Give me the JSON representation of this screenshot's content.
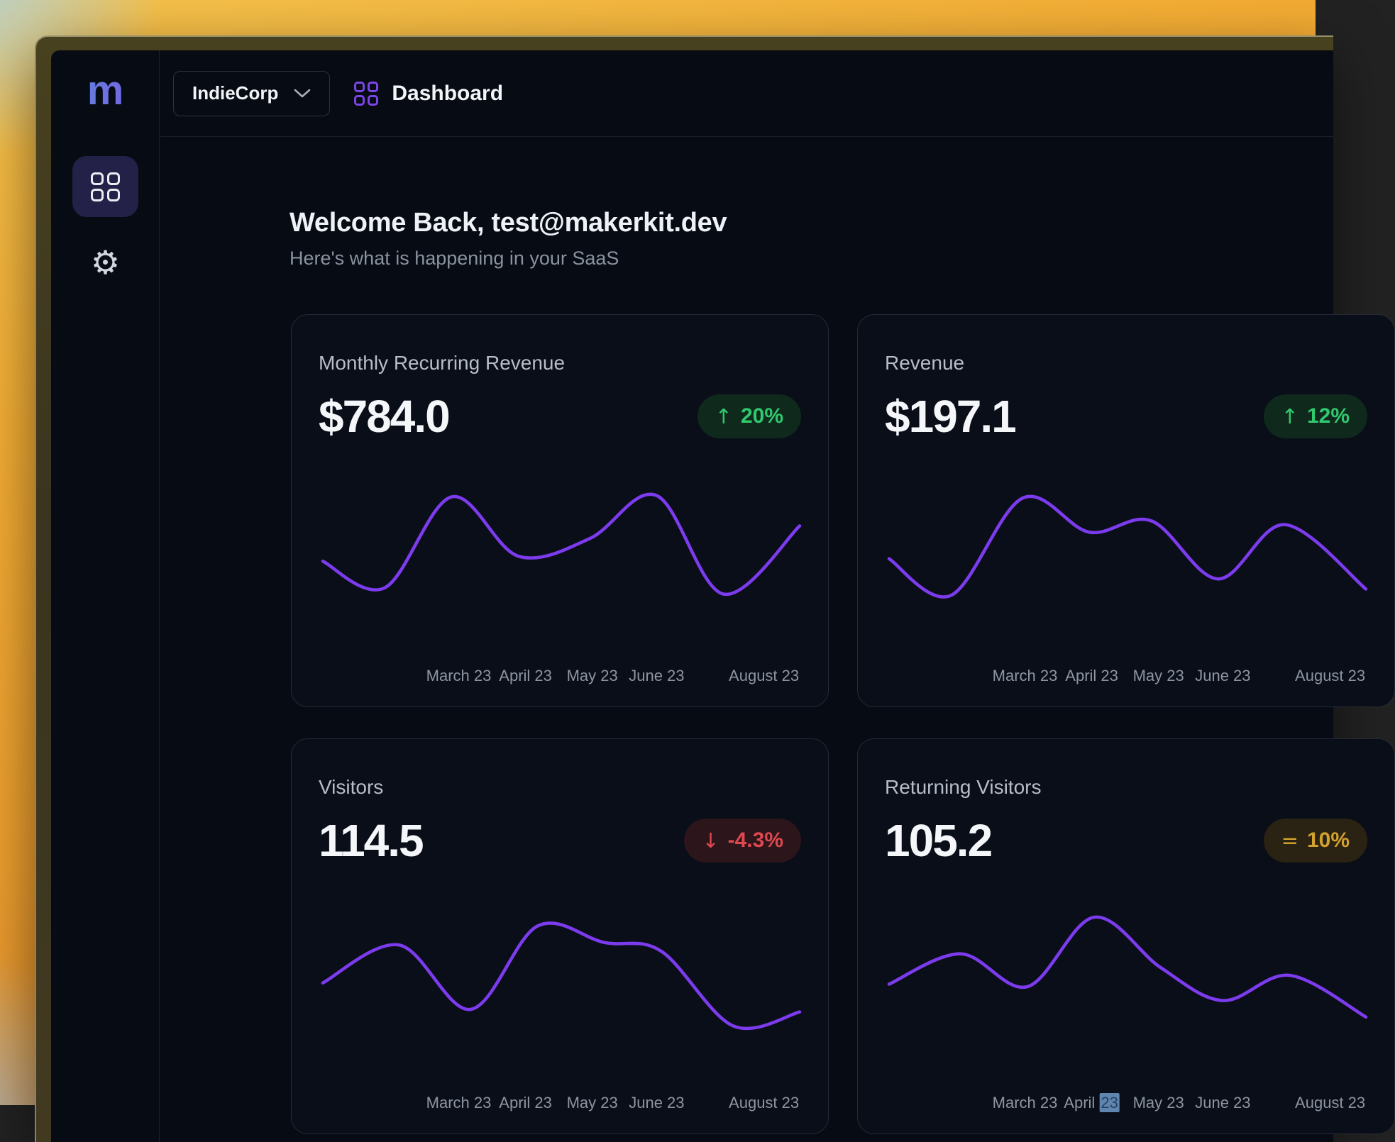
{
  "header": {
    "org_selector": {
      "label": "IndieCorp"
    },
    "page": {
      "label": "Dashboard"
    }
  },
  "sidebar": {
    "logo_text": "m"
  },
  "main": {
    "welcome_title": "Welcome Back, test@makerkit.dev",
    "welcome_subtitle": "Here's what is happening in your SaaS"
  },
  "colors": {
    "accent_line": "#7c3bed",
    "positive": "#30c96e",
    "positive_bg": "#10291d",
    "negative": "#e0484f",
    "negative_bg": "#2c151b",
    "neutral": "#d2a22e",
    "neutral_bg": "#2a2212",
    "selection": "#5f85b0",
    "selection_text": "#27415e"
  },
  "chart_data": [
    {
      "type": "line",
      "title": "Monthly Recurring Revenue",
      "value": "$784.0",
      "badge": {
        "icon": "↑",
        "label": "20%",
        "fg": "#30c96e",
        "bg": "#10291d"
      },
      "color": "#7c3bed",
      "categories": [
        "March 23",
        "April 23",
        "May 23",
        "June 23",
        "August 23"
      ],
      "tick_positions": [
        28.5,
        42.5,
        56.5,
        70,
        92.5
      ],
      "yaxis": "hidden",
      "points": [
        [
          0,
          58
        ],
        [
          13,
          79
        ],
        [
          27,
          7
        ],
        [
          41,
          54
        ],
        [
          56,
          40
        ],
        [
          70,
          6
        ],
        [
          84,
          84
        ],
        [
          100,
          30
        ]
      ]
    },
    {
      "type": "line",
      "title": "Revenue",
      "value": "$197.1",
      "badge": {
        "icon": "↑",
        "label": "12%",
        "fg": "#30c96e",
        "bg": "#10291d"
      },
      "color": "#7c3bed",
      "categories": [
        "March 23",
        "April 23",
        "May 23",
        "June 23",
        "August 23"
      ],
      "tick_positions": [
        28.5,
        42.5,
        56.5,
        70,
        92.5
      ],
      "yaxis": "hidden",
      "points": [
        [
          0,
          56
        ],
        [
          13,
          85
        ],
        [
          28,
          8
        ],
        [
          42,
          35
        ],
        [
          55,
          26
        ],
        [
          69,
          72
        ],
        [
          83,
          29
        ],
        [
          100,
          80
        ]
      ]
    },
    {
      "type": "line",
      "title": "Visitors",
      "value": "114.5",
      "badge": {
        "icon": "↓",
        "label": "-4.3%",
        "fg": "#e0484f",
        "bg": "#2c151b"
      },
      "color": "#7c3bed",
      "categories": [
        "March 23",
        "April 23",
        "May 23",
        "June 23",
        "August 23"
      ],
      "tick_positions": [
        28.5,
        42.5,
        56.5,
        70,
        92.5
      ],
      "yaxis": "hidden",
      "points": [
        [
          0,
          56
        ],
        [
          16,
          26
        ],
        [
          31,
          77
        ],
        [
          45,
          11
        ],
        [
          59,
          24
        ],
        [
          71,
          31
        ],
        [
          86,
          90
        ],
        [
          100,
          79
        ]
      ]
    },
    {
      "type": "line",
      "title": "Returning Visitors",
      "value": "105.2",
      "badge": {
        "icon": "=",
        "label": "10%",
        "fg": "#d2a22e",
        "bg": "#2a2212"
      },
      "color": "#7c3bed",
      "categories": [
        "March 23",
        "April 23",
        "May 23",
        "June 23",
        "August 23"
      ],
      "tick_positions": [
        28.5,
        42.5,
        56.5,
        70,
        92.5
      ],
      "yaxis": "hidden",
      "selection": {
        "tick": 1,
        "part": "23"
      },
      "points": [
        [
          0,
          57
        ],
        [
          15,
          33
        ],
        [
          29,
          59
        ],
        [
          43,
          4
        ],
        [
          57,
          44
        ],
        [
          70,
          70
        ],
        [
          84,
          50
        ],
        [
          100,
          83
        ]
      ]
    }
  ]
}
